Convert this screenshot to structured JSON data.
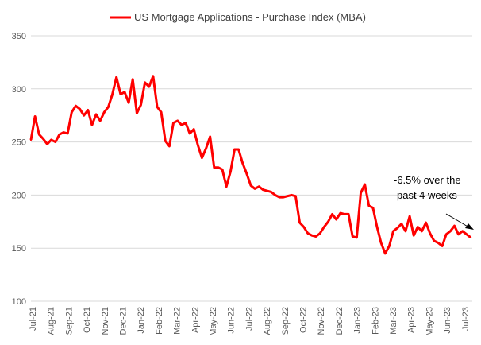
{
  "chart_data": {
    "type": "line",
    "title": "",
    "xlabel": "",
    "ylabel": "",
    "ylim": [
      100,
      350
    ],
    "yticks": [
      100,
      150,
      200,
      250,
      300,
      350
    ],
    "grid": "horizontal",
    "legend_position": "top-center",
    "x_tick_labels": [
      "Jul-21",
      "Aug-21",
      "Sep-21",
      "Oct-21",
      "Nov-21",
      "Dec-21",
      "Jan-22",
      "Feb-22",
      "Mar-22",
      "Apr-22",
      "May-22",
      "Jun-22",
      "Jul-22",
      "Aug-22",
      "Sep-22",
      "Oct-22",
      "Nov-22",
      "Dec-22",
      "Jan-23",
      "Feb-23",
      "Mar-23",
      "Apr-23",
      "May-23",
      "Jun-23",
      "Jul-23"
    ],
    "series": [
      {
        "name": "US Mortgage Applications - Purchase Index (MBA)",
        "color": "#ff0000",
        "values": [
          252,
          274,
          257,
          253,
          248,
          252,
          250,
          257,
          259,
          258,
          278,
          284,
          281,
          275,
          280,
          266,
          276,
          270,
          278,
          283,
          295,
          311,
          295,
          297,
          287,
          309,
          277,
          285,
          306,
          302,
          312,
          283,
          278,
          251,
          246,
          268,
          270,
          266,
          268,
          258,
          262,
          247,
          235,
          244,
          255,
          226,
          226,
          224,
          208,
          222,
          243,
          243,
          230,
          220,
          209,
          206,
          208,
          205,
          204,
          203,
          200,
          198,
          198,
          199,
          200,
          199,
          174,
          170,
          164,
          162,
          161,
          164,
          170,
          175,
          182,
          177,
          183,
          182,
          182,
          161,
          160,
          202,
          210,
          190,
          188,
          170,
          155,
          145,
          152,
          166,
          169,
          173,
          166,
          180,
          162,
          170,
          166,
          174,
          164,
          157,
          155,
          152,
          163,
          166,
          171,
          163,
          166,
          163,
          160
        ]
      }
    ],
    "annotations": [
      {
        "text_line1": "-6.5% over the",
        "text_line2": "past 4 weeks",
        "arrow": "points down-right to last data point"
      }
    ]
  }
}
